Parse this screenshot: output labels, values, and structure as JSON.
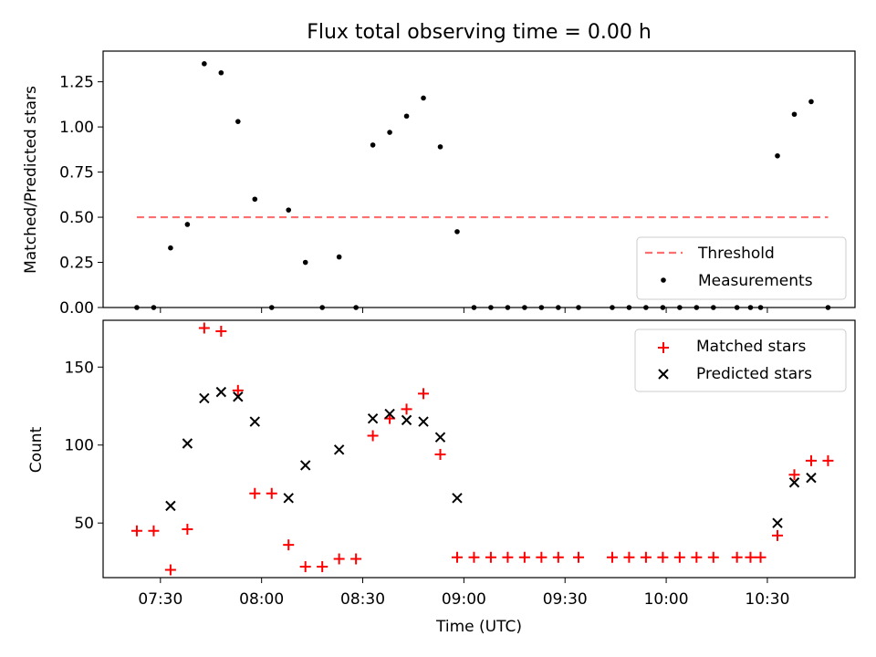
{
  "title": "Flux total observing time = 0.00 h",
  "chart_data": [
    {
      "type": "scatter",
      "ylabel": "Matched/Predicted stars",
      "ylim": [
        0,
        1.42
      ],
      "yticks": [
        0.0,
        0.25,
        0.5,
        0.75,
        1.0,
        1.25
      ],
      "ytick_labels": [
        "0.00",
        "0.25",
        "0.50",
        "0.75",
        "1.00",
        "1.25"
      ],
      "grid": false,
      "legend": "lower-right",
      "threshold": {
        "name": "Threshold",
        "value": 0.5,
        "x_start": "07:23",
        "x_end": "10:48",
        "color": "#ff6f6f"
      },
      "series": [
        {
          "name": "Measurements",
          "marker": "dot",
          "color": "#000000",
          "points": [
            [
              "07:23",
              0.0
            ],
            [
              "07:28",
              0.0
            ],
            [
              "07:33",
              0.33
            ],
            [
              "07:38",
              0.46
            ],
            [
              "07:43",
              1.35
            ],
            [
              "07:48",
              1.3
            ],
            [
              "07:53",
              1.03
            ],
            [
              "07:58",
              0.6
            ],
            [
              "08:03",
              0.0
            ],
            [
              "08:08",
              0.54
            ],
            [
              "08:13",
              0.25
            ],
            [
              "08:18",
              0.0
            ],
            [
              "08:23",
              0.28
            ],
            [
              "08:28",
              0.0
            ],
            [
              "08:33",
              0.9
            ],
            [
              "08:38",
              0.97
            ],
            [
              "08:43",
              1.06
            ],
            [
              "08:48",
              1.16
            ],
            [
              "08:53",
              0.89
            ],
            [
              "08:58",
              0.42
            ],
            [
              "09:03",
              0.0
            ],
            [
              "09:08",
              0.0
            ],
            [
              "09:13",
              0.0
            ],
            [
              "09:18",
              0.0
            ],
            [
              "09:23",
              0.0
            ],
            [
              "09:28",
              0.0
            ],
            [
              "09:34",
              0.0
            ],
            [
              "09:44",
              0.0
            ],
            [
              "09:49",
              0.0
            ],
            [
              "09:54",
              0.0
            ],
            [
              "09:59",
              0.0
            ],
            [
              "10:04",
              0.0
            ],
            [
              "10:09",
              0.0
            ],
            [
              "10:14",
              0.0
            ],
            [
              "10:21",
              0.0
            ],
            [
              "10:25",
              0.0
            ],
            [
              "10:28",
              0.0
            ],
            [
              "10:33",
              0.84
            ],
            [
              "10:38",
              1.07
            ],
            [
              "10:43",
              1.14
            ],
            [
              "10:48",
              0.0
            ]
          ]
        }
      ]
    },
    {
      "type": "scatter",
      "xlabel": "Time (UTC)",
      "ylabel": "Count",
      "xlim": [
        "07:13",
        "10:56"
      ],
      "ylim": [
        15,
        180
      ],
      "xticks": [
        "07:30",
        "08:00",
        "08:30",
        "09:00",
        "09:30",
        "10:00",
        "10:30"
      ],
      "yticks": [
        50,
        100,
        150
      ],
      "ytick_labels": [
        "50",
        "100",
        "150"
      ],
      "grid": false,
      "legend": "upper-right",
      "series": [
        {
          "name": "Matched stars",
          "marker": "plus",
          "color": "#ff0000",
          "points": [
            [
              "07:23",
              45
            ],
            [
              "07:28",
              45
            ],
            [
              "07:33",
              20
            ],
            [
              "07:38",
              46
            ],
            [
              "07:43",
              175
            ],
            [
              "07:48",
              173
            ],
            [
              "07:53",
              135
            ],
            [
              "07:58",
              69
            ],
            [
              "08:03",
              69
            ],
            [
              "08:08",
              36
            ],
            [
              "08:13",
              22
            ],
            [
              "08:18",
              22
            ],
            [
              "08:23",
              27
            ],
            [
              "08:28",
              27
            ],
            [
              "08:33",
              106
            ],
            [
              "08:38",
              117
            ],
            [
              "08:43",
              123
            ],
            [
              "08:48",
              133
            ],
            [
              "08:53",
              94
            ],
            [
              "08:58",
              28
            ],
            [
              "09:03",
              28
            ],
            [
              "09:08",
              28
            ],
            [
              "09:13",
              28
            ],
            [
              "09:18",
              28
            ],
            [
              "09:23",
              28
            ],
            [
              "09:28",
              28
            ],
            [
              "09:34",
              28
            ],
            [
              "09:44",
              28
            ],
            [
              "09:49",
              28
            ],
            [
              "09:54",
              28
            ],
            [
              "09:59",
              28
            ],
            [
              "10:04",
              28
            ],
            [
              "10:09",
              28
            ],
            [
              "10:14",
              28
            ],
            [
              "10:21",
              28
            ],
            [
              "10:25",
              28
            ],
            [
              "10:28",
              28
            ],
            [
              "10:33",
              42
            ],
            [
              "10:38",
              81
            ],
            [
              "10:43",
              90
            ],
            [
              "10:48",
              90
            ]
          ]
        },
        {
          "name": "Predicted stars",
          "marker": "x",
          "color": "#000000",
          "points": [
            [
              "07:33",
              61
            ],
            [
              "07:38",
              101
            ],
            [
              "07:43",
              130
            ],
            [
              "07:48",
              134
            ],
            [
              "07:53",
              131
            ],
            [
              "07:58",
              115
            ],
            [
              "08:08",
              66
            ],
            [
              "08:13",
              87
            ],
            [
              "08:23",
              97
            ],
            [
              "08:33",
              117
            ],
            [
              "08:38",
              120
            ],
            [
              "08:43",
              116
            ],
            [
              "08:48",
              115
            ],
            [
              "08:53",
              105
            ],
            [
              "08:58",
              66
            ],
            [
              "10:33",
              50
            ],
            [
              "10:38",
              76
            ],
            [
              "10:43",
              79
            ]
          ]
        }
      ]
    }
  ]
}
